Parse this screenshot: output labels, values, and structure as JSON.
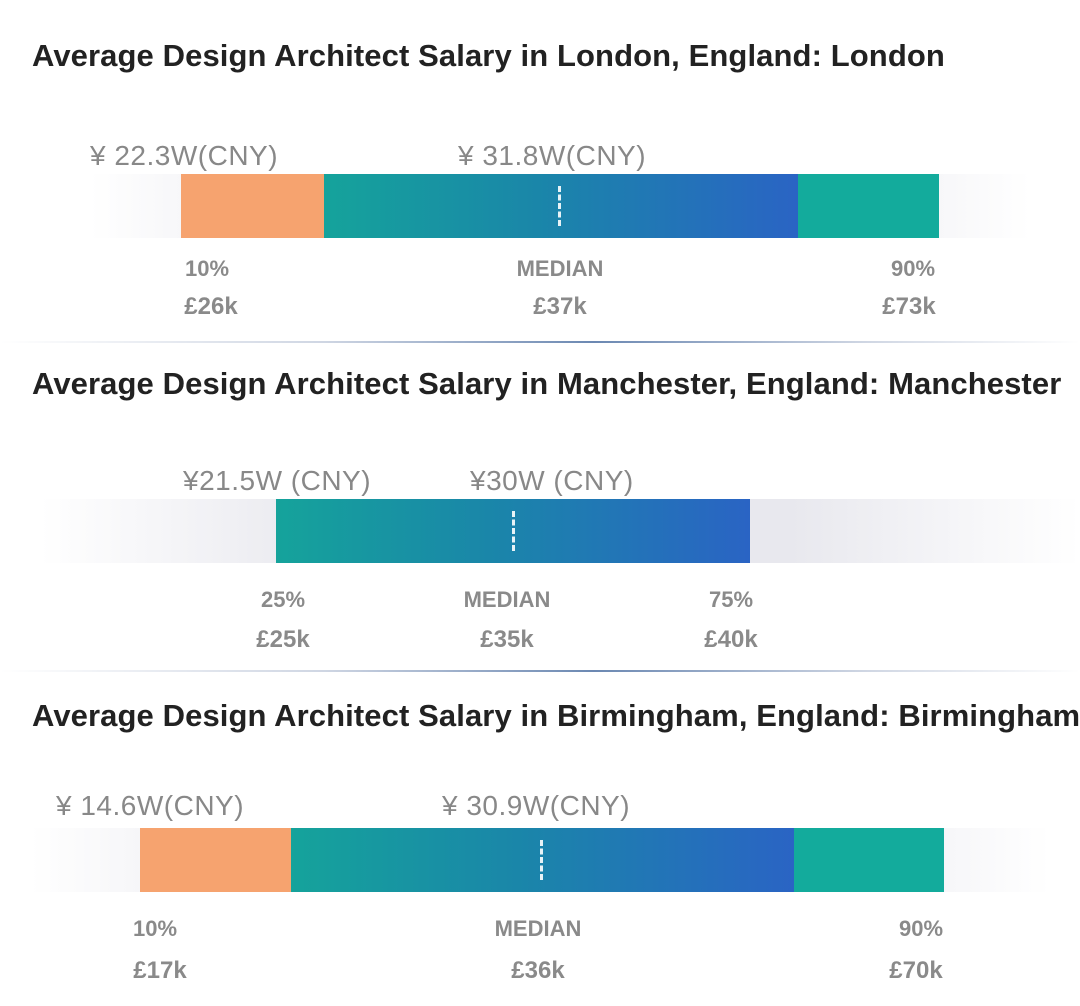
{
  "chart_data": [
    {
      "type": "bar",
      "title": "Average Design Architect Salary in London, England: London",
      "cny_low": "¥ 22.3W(CNY)",
      "cny_median": "¥ 31.8W(CNY)",
      "percentiles": [
        {
          "label": "10%",
          "value": "£26k",
          "gbp_k": 26
        },
        {
          "label": "MEDIAN",
          "value": "£37k",
          "gbp_k": 37
        },
        {
          "label": "90%",
          "value": "£73k",
          "gbp_k": 73
        }
      ],
      "segment_colors": {
        "low": "#f6a36f",
        "mid": "#1a86a9",
        "high": "#13ab9c"
      }
    },
    {
      "type": "bar",
      "title": "Average Design Architect Salary in Manchester, England: Manchester",
      "cny_low": "¥21.5W (CNY)",
      "cny_median": "¥30W (CNY)",
      "percentiles": [
        {
          "label": "25%",
          "value": "£25k",
          "gbp_k": 25
        },
        {
          "label": "MEDIAN",
          "value": "£35k",
          "gbp_k": 35
        },
        {
          "label": "75%",
          "value": "£40k",
          "gbp_k": 40
        }
      ],
      "segment_colors": {
        "mid": "#1a86a9"
      }
    },
    {
      "type": "bar",
      "title": "Average Design Architect Salary in Birmingham, England: Birmingham",
      "cny_low": "¥ 14.6W(CNY)",
      "cny_median": "¥ 30.9W(CNY)",
      "percentiles": [
        {
          "label": "10%",
          "value": "£17k",
          "gbp_k": 17
        },
        {
          "label": "MEDIAN",
          "value": "£36k",
          "gbp_k": 36
        },
        {
          "label": "90%",
          "value": "£70k",
          "gbp_k": 70
        }
      ],
      "segment_colors": {
        "low": "#f6a36f",
        "mid": "#1a86a9",
        "high": "#13ab9c"
      }
    }
  ]
}
